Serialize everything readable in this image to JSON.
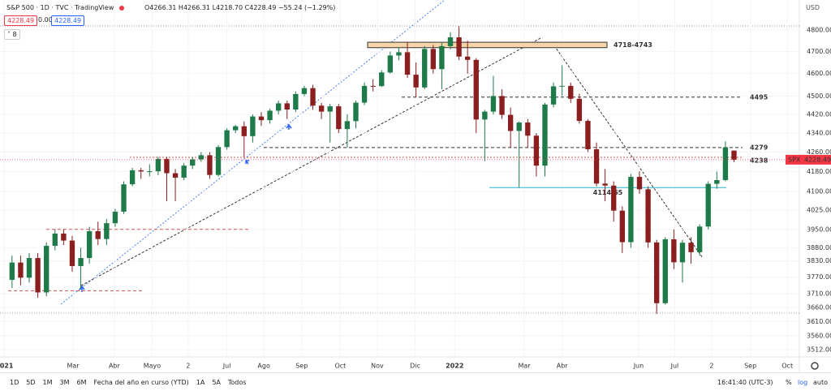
{
  "header": {
    "symbol": "S&P 500 · 1D · TVC · TradingView",
    "ohlc": "O4266.31 H4266.31 L4218.70 C4228.49 −55.24 (−1.29%)",
    "bid": "4228.49",
    "spread": "0.00",
    "ask": "4228.49",
    "indicators": "8",
    "currency": "USD"
  },
  "toolbar": {
    "ranges": [
      "1D",
      "5D",
      "1M",
      "3M",
      "6M",
      "Fecha del año en curso (YTD)",
      "1A",
      "5A",
      "Todos"
    ],
    "time": "16:41:40 (UTC-3)",
    "percent": "%",
    "log": "log",
    "auto": "auto"
  },
  "chart_data": {
    "type": "candlestick",
    "log_scale": true,
    "grid": true,
    "up_color": "#1f7a4a",
    "down_color": "#8b1e1e",
    "tag": "SPX",
    "xlim": [
      -1.4,
      91.6
    ],
    "xticks": [
      {
        "value": -0.9,
        "label": "2021"
      },
      {
        "value": 7.1,
        "label": "Mar"
      },
      {
        "value": 11.9,
        "label": "Abr"
      },
      {
        "value": 16.3,
        "label": "Mayo"
      },
      {
        "value": 20.5,
        "label": "2"
      },
      {
        "value": 25,
        "label": "Jul"
      },
      {
        "value": 29.3,
        "label": "Ago"
      },
      {
        "value": 33.7,
        "label": "Sep"
      },
      {
        "value": 38.2,
        "label": "Oct"
      },
      {
        "value": 42.5,
        "label": "Nov"
      },
      {
        "value": 46.9,
        "label": "Dic"
      },
      {
        "value": 51.5,
        "label": "2022"
      },
      {
        "value": 59.6,
        "label": "Mar"
      },
      {
        "value": 64,
        "label": "Abr"
      },
      {
        "value": 72.9,
        "label": "Jun"
      },
      {
        "value": 77.1,
        "label": "Jul"
      },
      {
        "value": 81.4,
        "label": "2"
      },
      {
        "value": 85.9,
        "label": "Sep"
      },
      {
        "value": 90.2,
        "label": "Oct"
      }
    ],
    "ylim": [
      3487,
      4943
    ],
    "yticks": [
      {
        "value": 4800,
        "label": "4800.00"
      },
      {
        "value": 4700,
        "label": "4700.00"
      },
      {
        "value": 4600,
        "label": "4600.00"
      },
      {
        "value": 4500,
        "label": "4500.00"
      },
      {
        "value": 4420,
        "label": "4420.00"
      },
      {
        "value": 4340,
        "label": "4340.00"
      },
      {
        "value": 4260,
        "label": "4260.00"
      },
      {
        "value": 4180,
        "label": "4180.00"
      },
      {
        "value": 4100,
        "label": "4100.00"
      },
      {
        "value": 4025,
        "label": "4025.00"
      },
      {
        "value": 3950,
        "label": "3950.00"
      },
      {
        "value": 3880,
        "label": "3880.00"
      },
      {
        "value": 3830,
        "label": "3830.00"
      },
      {
        "value": 3770,
        "label": "3770.00"
      },
      {
        "value": 3710,
        "label": "3710.00"
      },
      {
        "value": 3660,
        "label": "3660.00"
      },
      {
        "value": 3610,
        "label": "3610.00"
      },
      {
        "value": 3560,
        "label": "3560.00"
      },
      {
        "value": 3512,
        "label": "3512.00"
      }
    ],
    "open": [
      3760,
      3824,
      3768,
      3841,
      3714,
      3887,
      3934,
      3907,
      3811,
      3841,
      3943,
      3913,
      3974,
      4019,
      4128,
      4185,
      4180,
      4181,
      4232,
      4173,
      4155,
      4204,
      4230,
      4247,
      4166,
      4281,
      4352,
      4369,
      4327,
      4411,
      4395,
      4436,
      4468,
      4441,
      4509,
      4535,
      4458,
      4432,
      4455,
      4357,
      4391,
      4471,
      4545,
      4544,
      4605,
      4682,
      4697,
      4595,
      4538,
      4712,
      4620,
      4725,
      4766,
      4677,
      4662,
      4398,
      4432,
      4500,
      4418,
      4349,
      4385,
      4329,
      4204,
      4463,
      4543,
      4545,
      4488,
      4392,
      4272,
      4131,
      4123,
      4023,
      3901,
      4158,
      4108,
      3900,
      3675,
      3912,
      3825,
      3899,
      3863,
      3961,
      4130,
      4145,
      4266.31
    ],
    "high": [
      3850,
      3850,
      3860,
      3860,
      3900,
      3950,
      3950,
      3925,
      3880,
      3960,
      3980,
      3990,
      4030,
      4140,
      4195,
      4195,
      4210,
      4240,
      4240,
      4190,
      4215,
      4240,
      4260,
      4260,
      4290,
      4360,
      4375,
      4390,
      4420,
      4430,
      4445,
      4480,
      4480,
      4520,
      4545,
      4550,
      4470,
      4465,
      4465,
      4420,
      4480,
      4560,
      4575,
      4615,
      4700,
      4718,
      4745,
      4650,
      4725,
      4730,
      4740,
      4790,
      4818,
      4750,
      4670,
      4440,
      4590,
      4530,
      4450,
      4390,
      4400,
      4340,
      4470,
      4560,
      4637,
      4560,
      4510,
      4400,
      4300,
      4190,
      4140,
      4040,
      4170,
      4180,
      4120,
      3910,
      3920,
      3950,
      3910,
      3920,
      3970,
      4140,
      4180,
      4305,
      4266.31
    ],
    "low": [
      3730,
      3740,
      3750,
      3695,
      3700,
      3870,
      3890,
      3790,
      3725,
      3820,
      3890,
      3890,
      3960,
      4010,
      4120,
      4150,
      4160,
      4165,
      4060,
      4060,
      4145,
      4190,
      4220,
      4150,
      4160,
      4270,
      4340,
      4240,
      4300,
      4370,
      4380,
      4420,
      4400,
      4430,
      4500,
      4440,
      4400,
      4300,
      4340,
      4280,
      4360,
      4460,
      4520,
      4540,
      4600,
      4660,
      4580,
      4495,
      4530,
      4600,
      4530,
      4710,
      4660,
      4600,
      4340,
      4222,
      4420,
      4400,
      4280,
      4114,
      4280,
      4160,
      4160,
      4450,
      4500,
      4470,
      4380,
      4260,
      4120,
      4060,
      3980,
      3860,
      3880,
      4090,
      3880,
      3637,
      3670,
      3800,
      3750,
      3820,
      3850,
      3950,
      4110,
      4140,
      4218.7
    ],
    "close": [
      3824,
      3768,
      3841,
      3714,
      3887,
      3934,
      3907,
      3811,
      3841,
      3943,
      3913,
      3974,
      4019,
      4128,
      4185,
      4180,
      4181,
      4232,
      4173,
      4155,
      4204,
      4230,
      4247,
      4166,
      4281,
      4352,
      4369,
      4327,
      4411,
      4395,
      4436,
      4468,
      4441,
      4509,
      4535,
      4458,
      4432,
      4455,
      4357,
      4391,
      4471,
      4545,
      4544,
      4605,
      4682,
      4697,
      4595,
      4538,
      4712,
      4620,
      4725,
      4766,
      4677,
      4662,
      4398,
      4432,
      4500,
      4418,
      4349,
      4385,
      4329,
      4204,
      4463,
      4543,
      4545,
      4488,
      4392,
      4272,
      4131,
      4123,
      4023,
      3901,
      4158,
      4108,
      3900,
      3675,
      3912,
      3825,
      3899,
      3863,
      3961,
      4130,
      4145,
      4280,
      4228.49
    ],
    "zone": {
      "label": "4718-4743",
      "low": 4718,
      "high": 4743
    },
    "levels": [
      {
        "value": 4495,
        "color": "#333333"
      },
      {
        "value": 4279,
        "color": "#333333"
      },
      {
        "value": 4238,
        "color": "#d9534f"
      },
      {
        "value": 4114.65,
        "color": "#26b5c8"
      }
    ],
    "unlabeled_levels": [
      3950,
      3720
    ]
  }
}
